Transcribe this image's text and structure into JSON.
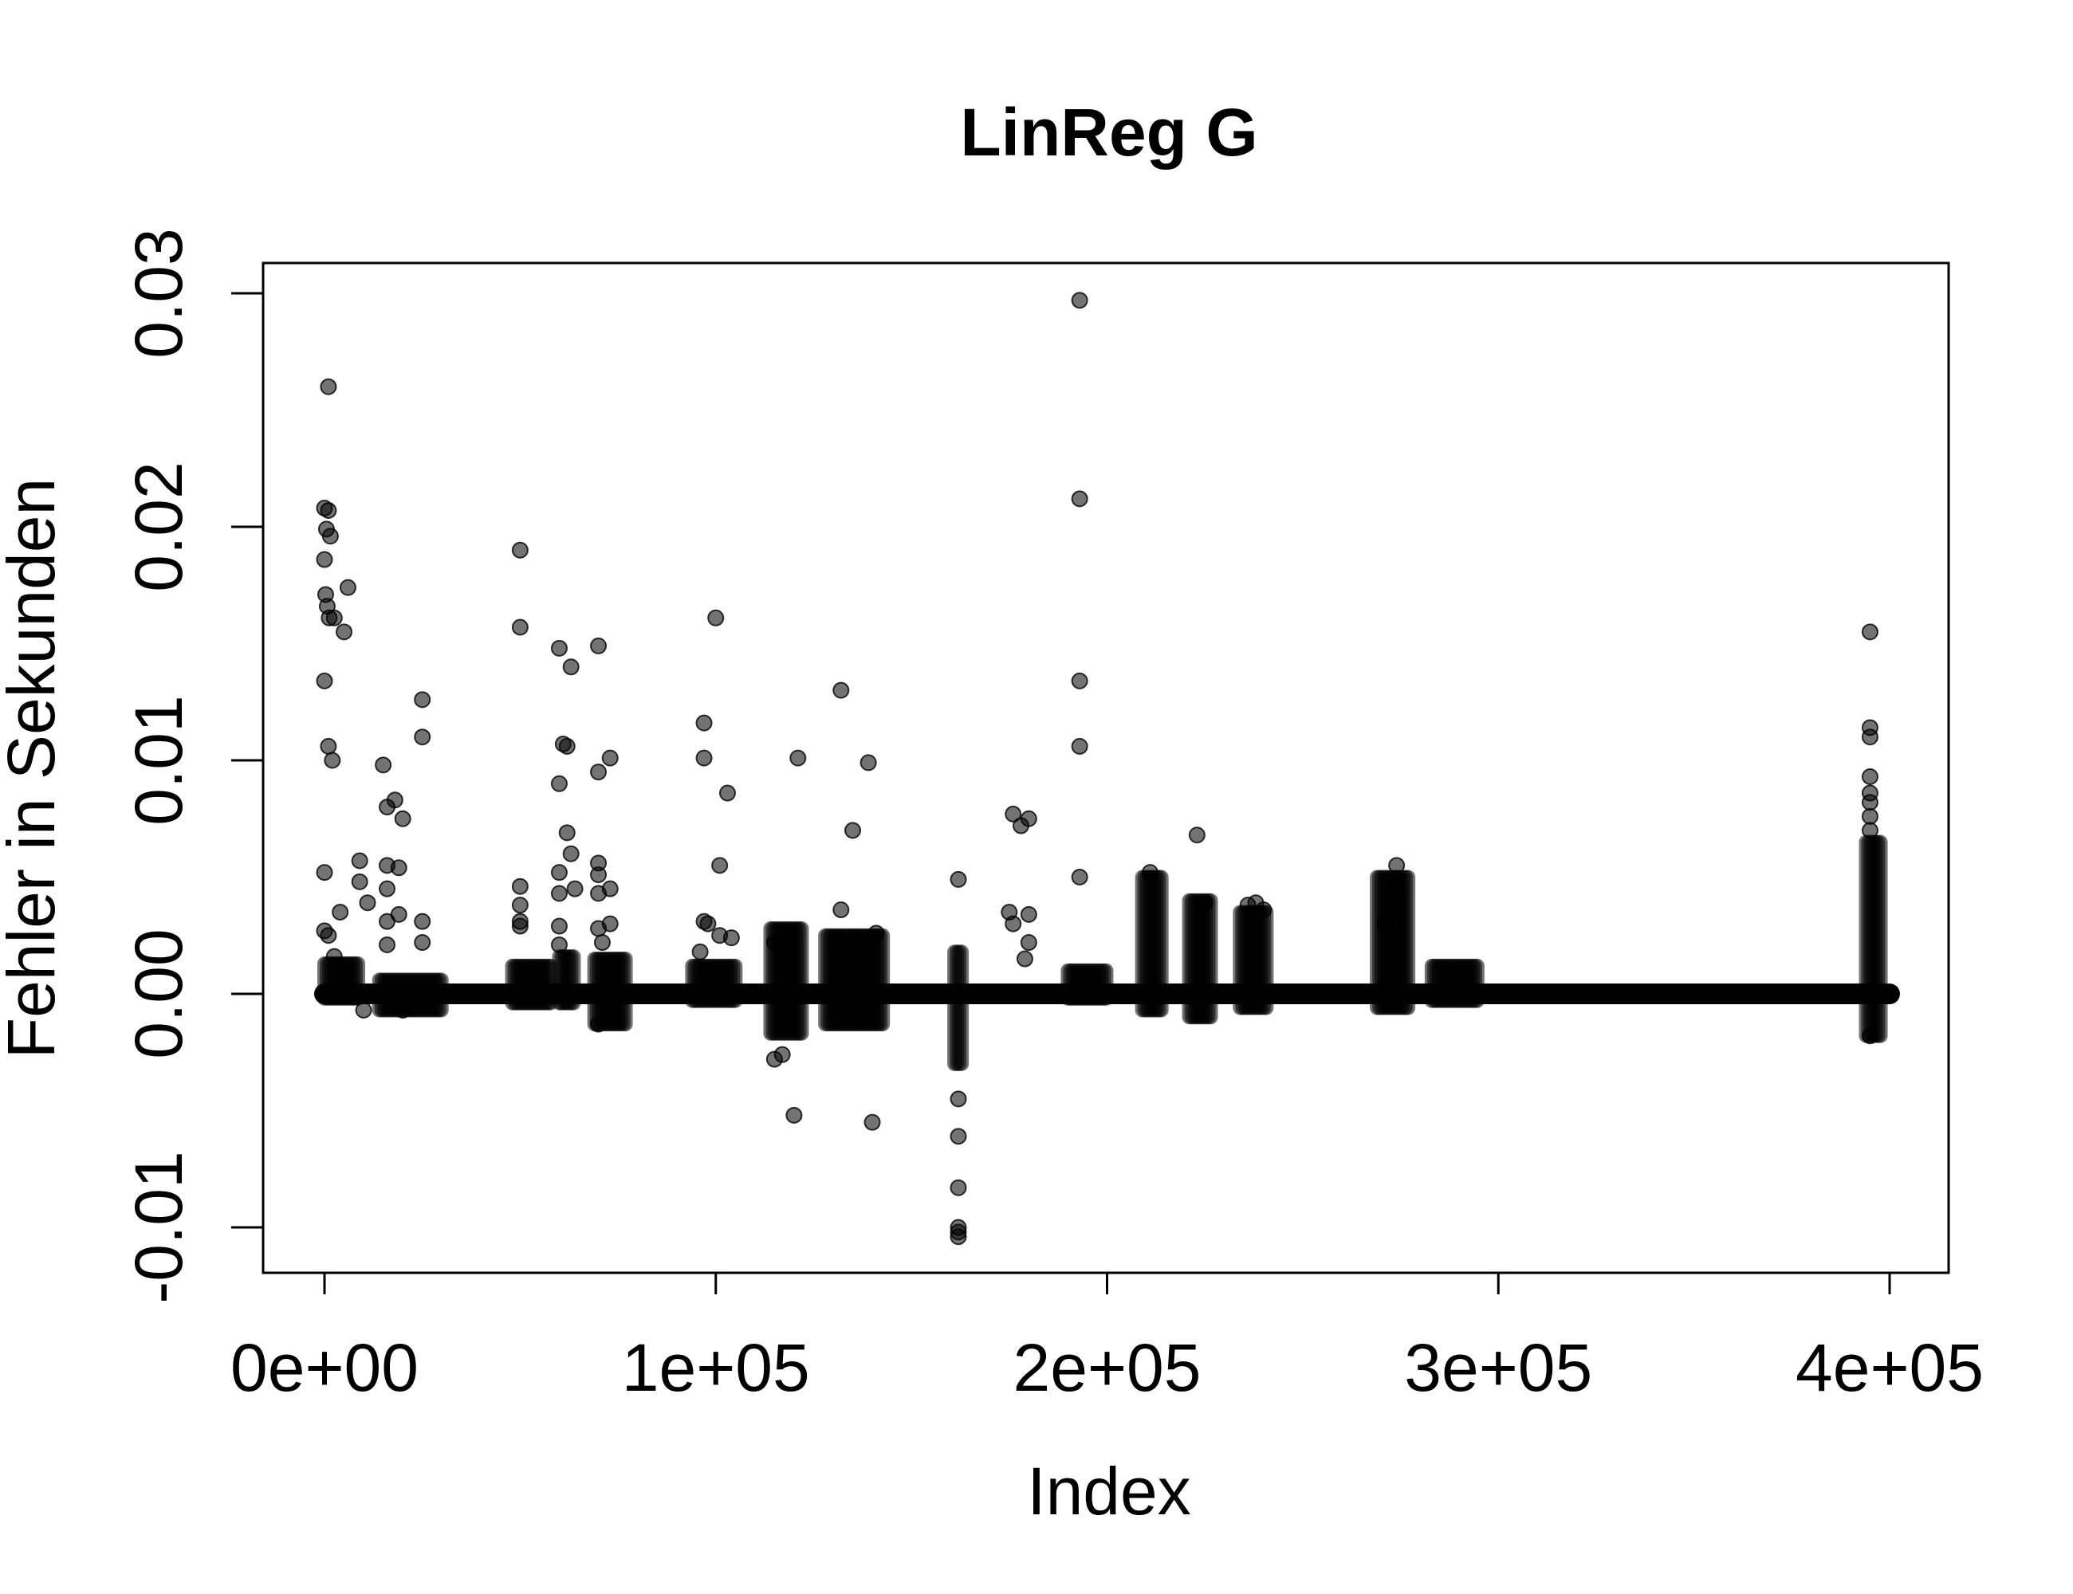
{
  "chart_data": {
    "type": "scatter",
    "title": "LinReg G",
    "xlabel": "Index",
    "ylabel": "Fehler in Sekunden",
    "xlim": [
      0,
      400000
    ],
    "ylim": [
      -0.01,
      0.03
    ],
    "x_ticks": [
      0,
      100000,
      200000,
      300000,
      400000
    ],
    "x_tick_labels": [
      "0e+00",
      "1e+05",
      "2e+05",
      "3e+05",
      "4e+05"
    ],
    "y_ticks": [
      -0.01,
      0.0,
      0.01,
      0.02,
      0.03
    ],
    "y_tick_labels": [
      "-0.01",
      "0.00",
      "0.01",
      "0.02",
      "0.03"
    ],
    "grid": false,
    "legend": "none",
    "marker_color": "#000000",
    "marker_opacity": 0.55,
    "baseline": {
      "y": 0.0,
      "x_range": [
        0,
        400000
      ]
    },
    "dense_bands": [
      {
        "x_start": 0,
        "x_end": 9000,
        "y_min": -0.0002,
        "y_max": 0.0013
      },
      {
        "x_start": 14000,
        "x_end": 30000,
        "y_min": -0.0007,
        "y_max": 0.0006
      },
      {
        "x_start": 48000,
        "x_end": 58000,
        "y_min": -0.0004,
        "y_max": 0.0012
      },
      {
        "x_start": 60000,
        "x_end": 64000,
        "y_min": -0.0004,
        "y_max": 0.0016
      },
      {
        "x_start": 69000,
        "x_end": 77000,
        "y_min": -0.0013,
        "y_max": 0.0015
      },
      {
        "x_start": 94000,
        "x_end": 105000,
        "y_min": -0.0003,
        "y_max": 0.0012
      },
      {
        "x_start": 114000,
        "x_end": 122000,
        "y_min": -0.0017,
        "y_max": 0.0028
      },
      {
        "x_start": 128000,
        "x_end": 143000,
        "y_min": -0.0013,
        "y_max": 0.0025
      },
      {
        "x_start": 161000,
        "x_end": 163000,
        "y_min": -0.003,
        "y_max": 0.0018
      },
      {
        "x_start": 190000,
        "x_end": 200000,
        "y_min": -0.0002,
        "y_max": 0.001
      },
      {
        "x_start": 209000,
        "x_end": 214000,
        "y_min": -0.0007,
        "y_max": 0.005
      },
      {
        "x_start": 221000,
        "x_end": 227000,
        "y_min": -0.001,
        "y_max": 0.004
      },
      {
        "x_start": 234000,
        "x_end": 241000,
        "y_min": -0.0006,
        "y_max": 0.0035
      },
      {
        "x_start": 269000,
        "x_end": 277000,
        "y_min": -0.0006,
        "y_max": 0.005
      },
      {
        "x_start": 283000,
        "x_end": 295000,
        "y_min": -0.0003,
        "y_max": 0.0012
      },
      {
        "x_start": 394000,
        "x_end": 398000,
        "y_min": -0.0018,
        "y_max": 0.0065
      }
    ],
    "points": [
      {
        "x": 0,
        "y": 0.0208
      },
      {
        "x": 500,
        "y": 0.0199
      },
      {
        "x": 1000,
        "y": 0.0207
      },
      {
        "x": 1500,
        "y": 0.0196
      },
      {
        "x": 0,
        "y": 0.0186
      },
      {
        "x": 300,
        "y": 0.0171
      },
      {
        "x": 700,
        "y": 0.0166
      },
      {
        "x": 1200,
        "y": 0.0161
      },
      {
        "x": 2500,
        "y": 0.0161
      },
      {
        "x": 0,
        "y": 0.0134
      },
      {
        "x": 1000,
        "y": 0.0106
      },
      {
        "x": 2000,
        "y": 0.01
      },
      {
        "x": 1000,
        "y": 0.026
      },
      {
        "x": 5000,
        "y": 0.0155
      },
      {
        "x": 6000,
        "y": 0.0174
      },
      {
        "x": 0,
        "y": 0.0052
      },
      {
        "x": 4000,
        "y": 0.0035
      },
      {
        "x": 0,
        "y": 0.0027
      },
      {
        "x": 1000,
        "y": 0.0025
      },
      {
        "x": 2500,
        "y": 0.0016
      },
      {
        "x": 9000,
        "y": 0.0057
      },
      {
        "x": 9000,
        "y": 0.0048
      },
      {
        "x": 11000,
        "y": 0.0039
      },
      {
        "x": 15000,
        "y": 0.0098
      },
      {
        "x": 16000,
        "y": 0.008
      },
      {
        "x": 18000,
        "y": 0.0083
      },
      {
        "x": 20000,
        "y": 0.0075
      },
      {
        "x": 16000,
        "y": 0.0055
      },
      {
        "x": 16000,
        "y": 0.0045
      },
      {
        "x": 19000,
        "y": 0.0054
      },
      {
        "x": 16000,
        "y": 0.0031
      },
      {
        "x": 19000,
        "y": 0.0034
      },
      {
        "x": 16000,
        "y": 0.0021
      },
      {
        "x": 25000,
        "y": 0.0126
      },
      {
        "x": 25000,
        "y": 0.011
      },
      {
        "x": 25000,
        "y": 0.0031
      },
      {
        "x": 25000,
        "y": 0.0022
      },
      {
        "x": 10000,
        "y": -0.0007
      },
      {
        "x": 20000,
        "y": -0.0007
      },
      {
        "x": 50000,
        "y": 0.019
      },
      {
        "x": 50000,
        "y": 0.0157
      },
      {
        "x": 50000,
        "y": 0.0046
      },
      {
        "x": 50000,
        "y": 0.0038
      },
      {
        "x": 50000,
        "y": 0.0031
      },
      {
        "x": 50000,
        "y": 0.0029
      },
      {
        "x": 60000,
        "y": 0.0148
      },
      {
        "x": 63000,
        "y": 0.014
      },
      {
        "x": 61000,
        "y": 0.0107
      },
      {
        "x": 62000,
        "y": 0.0106
      },
      {
        "x": 60000,
        "y": 0.009
      },
      {
        "x": 62000,
        "y": 0.0069
      },
      {
        "x": 63000,
        "y": 0.006
      },
      {
        "x": 60000,
        "y": 0.0052
      },
      {
        "x": 60000,
        "y": 0.0043
      },
      {
        "x": 64000,
        "y": 0.0045
      },
      {
        "x": 60000,
        "y": 0.0029
      },
      {
        "x": 60000,
        "y": 0.0021
      },
      {
        "x": 70000,
        "y": 0.0149
      },
      {
        "x": 73000,
        "y": 0.0101
      },
      {
        "x": 70000,
        "y": 0.0095
      },
      {
        "x": 70000,
        "y": 0.0056
      },
      {
        "x": 70000,
        "y": 0.0051
      },
      {
        "x": 73000,
        "y": 0.0045
      },
      {
        "x": 70000,
        "y": 0.0043
      },
      {
        "x": 73000,
        "y": 0.003
      },
      {
        "x": 70000,
        "y": 0.0028
      },
      {
        "x": 71000,
        "y": 0.0022
      },
      {
        "x": 70000,
        "y": -0.0013
      },
      {
        "x": 97000,
        "y": 0.0116
      },
      {
        "x": 97000,
        "y": 0.0101
      },
      {
        "x": 100000,
        "y": 0.0161
      },
      {
        "x": 103000,
        "y": 0.0086
      },
      {
        "x": 101000,
        "y": 0.0055
      },
      {
        "x": 97000,
        "y": 0.0031
      },
      {
        "x": 98000,
        "y": 0.003
      },
      {
        "x": 101000,
        "y": 0.0025
      },
      {
        "x": 104000,
        "y": 0.0024
      },
      {
        "x": 96000,
        "y": 0.0018
      },
      {
        "x": 115000,
        "y": -0.0028
      },
      {
        "x": 117000,
        "y": -0.0026
      },
      {
        "x": 120000,
        "y": -0.0052
      },
      {
        "x": 121000,
        "y": 0.0101
      },
      {
        "x": 115000,
        "y": 0.0022
      },
      {
        "x": 119000,
        "y": 0.0025
      },
      {
        "x": 132000,
        "y": 0.013
      },
      {
        "x": 139000,
        "y": 0.0099
      },
      {
        "x": 135000,
        "y": 0.007
      },
      {
        "x": 132000,
        "y": 0.0036
      },
      {
        "x": 132000,
        "y": 0.0022
      },
      {
        "x": 137000,
        "y": 0.0022
      },
      {
        "x": 132000,
        "y": -0.0007
      },
      {
        "x": 140000,
        "y": -0.0055
      },
      {
        "x": 141000,
        "y": 0.0026
      },
      {
        "x": 162000,
        "y": 0.0049
      },
      {
        "x": 162000,
        "y": -0.0045
      },
      {
        "x": 162000,
        "y": -0.0061
      },
      {
        "x": 162000,
        "y": -0.0083
      },
      {
        "x": 162000,
        "y": -0.01
      },
      {
        "x": 162000,
        "y": -0.0102
      },
      {
        "x": 162000,
        "y": -0.0104
      },
      {
        "x": 176000,
        "y": 0.0077
      },
      {
        "x": 178000,
        "y": 0.0072
      },
      {
        "x": 180000,
        "y": 0.0075
      },
      {
        "x": 175000,
        "y": 0.0035
      },
      {
        "x": 180000,
        "y": 0.0034
      },
      {
        "x": 176000,
        "y": 0.003
      },
      {
        "x": 180000,
        "y": 0.0022
      },
      {
        "x": 179000,
        "y": 0.0015
      },
      {
        "x": 193000,
        "y": 0.0297
      },
      {
        "x": 193000,
        "y": 0.0212
      },
      {
        "x": 193000,
        "y": 0.0134
      },
      {
        "x": 193000,
        "y": 0.0106
      },
      {
        "x": 193000,
        "y": 0.005
      },
      {
        "x": 211000,
        "y": 0.0052
      },
      {
        "x": 223000,
        "y": 0.0068
      },
      {
        "x": 225000,
        "y": 0.0039
      },
      {
        "x": 236000,
        "y": 0.0038
      },
      {
        "x": 238000,
        "y": 0.0039
      },
      {
        "x": 240000,
        "y": 0.0036
      },
      {
        "x": 274000,
        "y": 0.0055
      },
      {
        "x": 274000,
        "y": 0.0047
      },
      {
        "x": 273000,
        "y": 0.0042
      },
      {
        "x": 271000,
        "y": 0.003
      },
      {
        "x": 395000,
        "y": 0.0155
      },
      {
        "x": 395000,
        "y": 0.0114
      },
      {
        "x": 395000,
        "y": 0.011
      },
      {
        "x": 395000,
        "y": 0.0093
      },
      {
        "x": 395000,
        "y": 0.0086
      },
      {
        "x": 395000,
        "y": 0.0082
      },
      {
        "x": 395000,
        "y": 0.0076
      },
      {
        "x": 395000,
        "y": 0.007
      },
      {
        "x": 395000,
        "y": -0.0018
      }
    ]
  }
}
